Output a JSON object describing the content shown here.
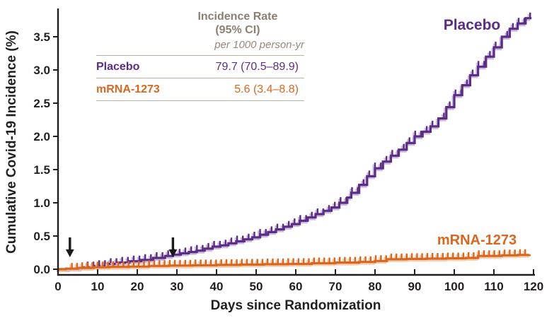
{
  "figure": {
    "y_axis_label": "Cumulative Covid-19 Incidence (%)",
    "x_axis_label": "Days since Randomization",
    "series_labels": {
      "placebo": "Placebo",
      "mrna": "mRNA-1273"
    },
    "colors": {
      "placebo": "#5b2d86",
      "placebo_shadow": "#c3afd7",
      "mrna": "#d9671f",
      "mrna_shadow": "#f2c8a3",
      "axis": "#231f20",
      "arrow": "#1a1a1a",
      "table_header": "#8a8072",
      "table_rule": "#b7afa0"
    }
  },
  "stats_table": {
    "header_line1": "Incidence Rate",
    "header_line2": "(95% CI)",
    "subheader": "per 1000 person-yr",
    "rows": [
      {
        "label": "Placebo",
        "value": "79.7 (70.5–89.9)"
      },
      {
        "label": "mRNA-1273",
        "value": "5.6 (3.4–8.8)"
      }
    ]
  },
  "chart_data": {
    "type": "line",
    "subtype": "kaplan-meier-step",
    "title": "",
    "xlabel": "Days since Randomization",
    "ylabel": "Cumulative Covid-19 Incidence (%)",
    "xlim": [
      0,
      120
    ],
    "ylim": [
      0,
      3.9
    ],
    "x_ticks": [
      0,
      10,
      20,
      30,
      40,
      50,
      60,
      70,
      80,
      90,
      100,
      110,
      120
    ],
    "y_ticks": [
      0.0,
      0.5,
      1.0,
      1.5,
      2.0,
      2.5,
      3.0,
      3.5
    ],
    "grid": false,
    "legend_position": "none",
    "annotations": [
      {
        "type": "down-arrow",
        "day": 3
      },
      {
        "type": "down-arrow",
        "day": 29
      }
    ],
    "series": [
      {
        "name": "Placebo",
        "color": "#5b2d86",
        "shadow_color": "#c3afd7",
        "censor_ticks": {
          "start": 7.5,
          "interval": 1.45,
          "end": 119.2
        },
        "end_day": 119.5,
        "points": [
          [
            0,
            0
          ],
          [
            3,
            0.01
          ],
          [
            6,
            0.03
          ],
          [
            9,
            0.05
          ],
          [
            12,
            0.08
          ],
          [
            15,
            0.1
          ],
          [
            18,
            0.12
          ],
          [
            21,
            0.14
          ],
          [
            24,
            0.17
          ],
          [
            27,
            0.2
          ],
          [
            29,
            0.22
          ],
          [
            31,
            0.24
          ],
          [
            33,
            0.26
          ],
          [
            35,
            0.28
          ],
          [
            37,
            0.31
          ],
          [
            39,
            0.34
          ],
          [
            41,
            0.36
          ],
          [
            43,
            0.39
          ],
          [
            45,
            0.42
          ],
          [
            47,
            0.45
          ],
          [
            49,
            0.48
          ],
          [
            51,
            0.52
          ],
          [
            53,
            0.56
          ],
          [
            55,
            0.6
          ],
          [
            57,
            0.64
          ],
          [
            59,
            0.68
          ],
          [
            61,
            0.73
          ],
          [
            63,
            0.78
          ],
          [
            65,
            0.83
          ],
          [
            67,
            0.88
          ],
          [
            69,
            0.93
          ],
          [
            71,
            1.0
          ],
          [
            73,
            1.08
          ],
          [
            74,
            1.15
          ],
          [
            76,
            1.27
          ],
          [
            78,
            1.4
          ],
          [
            80,
            1.52
          ],
          [
            82,
            1.62
          ],
          [
            84,
            1.71
          ],
          [
            86,
            1.8
          ],
          [
            88,
            1.9
          ],
          [
            90,
            2.0
          ],
          [
            92,
            2.07
          ],
          [
            94,
            2.15
          ],
          [
            96,
            2.27
          ],
          [
            98,
            2.44
          ],
          [
            100,
            2.62
          ],
          [
            102,
            2.77
          ],
          [
            104,
            2.92
          ],
          [
            106,
            3.05
          ],
          [
            108,
            3.2
          ],
          [
            110,
            3.34
          ],
          [
            112,
            3.5
          ],
          [
            114,
            3.62
          ],
          [
            116,
            3.7
          ],
          [
            118,
            3.78
          ],
          [
            119,
            3.78
          ]
        ]
      },
      {
        "name": "mRNA-1273",
        "color": "#d9671f",
        "shadow_color": "#f2c8a3",
        "censor_ticks": {
          "start": 3.5,
          "interval": 1.3,
          "end": 118.8
        },
        "end_day": 119,
        "points": [
          [
            0,
            0
          ],
          [
            2,
            0.01
          ],
          [
            5,
            0.02
          ],
          [
            9,
            0.03
          ],
          [
            13,
            0.035
          ],
          [
            18,
            0.04
          ],
          [
            23,
            0.05
          ],
          [
            28,
            0.055
          ],
          [
            34,
            0.06
          ],
          [
            40,
            0.065
          ],
          [
            46,
            0.07
          ],
          [
            52,
            0.075
          ],
          [
            58,
            0.08
          ],
          [
            64,
            0.09
          ],
          [
            70,
            0.1
          ],
          [
            76,
            0.11
          ],
          [
            80,
            0.125
          ],
          [
            83,
            0.15
          ],
          [
            88,
            0.155
          ],
          [
            93,
            0.16
          ],
          [
            98,
            0.165
          ],
          [
            103,
            0.17
          ],
          [
            106,
            0.2
          ],
          [
            112,
            0.21
          ],
          [
            116,
            0.215
          ],
          [
            119,
            0.22
          ]
        ]
      }
    ]
  }
}
